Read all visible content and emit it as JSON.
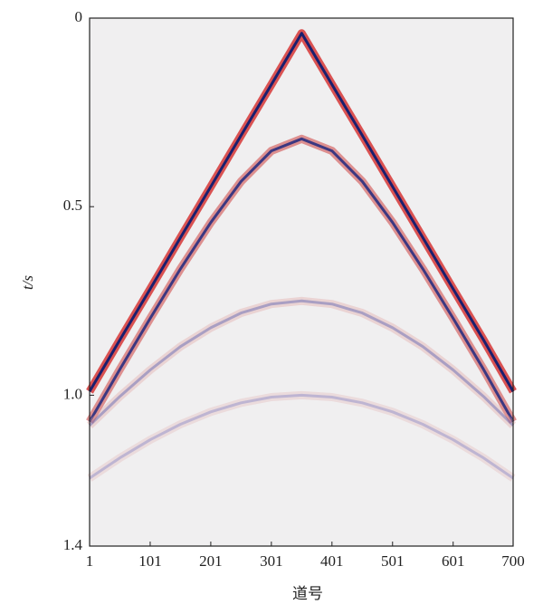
{
  "chart_data": {
    "type": "seismic",
    "x_label": "道号",
    "y_label": "t/s",
    "x": [
      1,
      51,
      101,
      151,
      201,
      251,
      301,
      351,
      401,
      451,
      501,
      551,
      601,
      651,
      700
    ],
    "xlim": [
      1,
      700
    ],
    "xticks": [
      1,
      101,
      201,
      301,
      401,
      501,
      601,
      700
    ],
    "ylim": [
      0,
      1.4
    ],
    "yticks": [
      0,
      0.5,
      {
        "value": 1,
        "label": "1.0"
      },
      1.4
    ],
    "y_inverted": true,
    "background": "#f0eff0",
    "series": [
      {
        "color": "#1a1f6e",
        "halo_color": "#d42a2a",
        "opacity": 1,
        "values": [
          0.99,
          0.853,
          0.718,
          0.582,
          0.447,
          0.311,
          0.176,
          0.04,
          0.176,
          0.311,
          0.447,
          0.582,
          0.718,
          0.853,
          0.99
        ]
      },
      {
        "color": "#2a2f80",
        "halo_color": "#d66a6a",
        "opacity": 0.9,
        "values": [
          1.07,
          0.931,
          0.796,
          0.665,
          0.542,
          0.433,
          0.352,
          0.32,
          0.352,
          0.433,
          0.542,
          0.665,
          0.796,
          0.931,
          1.07
        ]
      },
      {
        "color": "#5a5fb0",
        "halo_color": "#e0a0a0",
        "opacity": 0.45,
        "values": [
          1.08,
          1.003,
          0.933,
          0.871,
          0.821,
          0.782,
          0.758,
          0.75,
          0.758,
          0.782,
          0.821,
          0.871,
          0.933,
          1.003,
          1.08
        ]
      },
      {
        "color": "#6a6fc0",
        "halo_color": "#e0a8a8",
        "opacity": 0.35,
        "values": [
          1.22,
          1.166,
          1.118,
          1.077,
          1.044,
          1.02,
          1.005,
          1.0,
          1.005,
          1.02,
          1.044,
          1.077,
          1.118,
          1.166,
          1.22
        ]
      }
    ]
  }
}
